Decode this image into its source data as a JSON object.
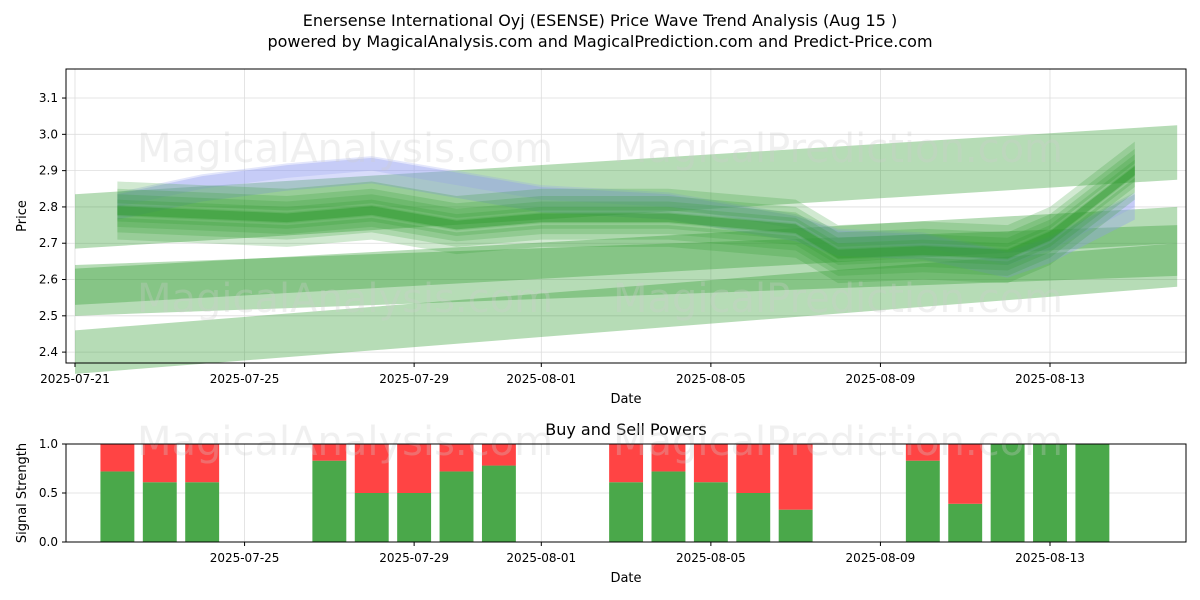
{
  "title_line1": "Enersense International Oyj (ESENSE) Price Wave Trend Analysis (Aug 15 )",
  "title_line2": "powered by MagicalAnalysis.com and MagicalPrediction.com and Predict-Price.com",
  "watermarks": [
    "MagicalAnalysis.com",
    "MagicalPrediction.com"
  ],
  "colors": {
    "green": "#2e9a2e",
    "red": "#ff4444",
    "bar_green": "#4aa84a",
    "blue": "#8e9cf0"
  },
  "chart_data": [
    {
      "type": "area",
      "title": "",
      "xlabel": "Date",
      "ylabel": "Price",
      "ylim": [
        2.37,
        3.18
      ],
      "xlim": [
        "2025-07-21",
        "2025-08-17"
      ],
      "yticks": [
        "2.4",
        "2.5",
        "2.6",
        "2.7",
        "2.8",
        "2.9",
        "3.0",
        "3.1"
      ],
      "xticks": [
        "2025-07-21",
        "2025-07-25",
        "2025-07-29",
        "2025-08-01",
        "2025-08-05",
        "2025-08-09",
        "2025-08-13"
      ],
      "grid": true,
      "bands": [
        {
          "name": "",
          "color": "green",
          "x0": "2025-07-21",
          "x1": "2025-08-16",
          "center": [
            2.76,
            2.95
          ],
          "half_width": 0.075
        },
        {
          "name": "",
          "color": "green",
          "x0": "2025-07-21",
          "x1": "2025-08-16",
          "center": [
            2.57,
            2.68
          ],
          "half_width": 0.07
        },
        {
          "name": "",
          "color": "green",
          "x0": "2025-07-21",
          "x1": "2025-08-16",
          "center": [
            2.4,
            2.64
          ],
          "half_width": 0.06
        },
        {
          "name": "",
          "color": "green",
          "x0": "2025-07-21",
          "x1": "2025-08-16",
          "center": [
            2.58,
            2.75
          ],
          "half_width": 0.05
        }
      ],
      "wave_dates": [
        "2025-07-22",
        "2025-07-24",
        "2025-07-26",
        "2025-07-28",
        "2025-07-30",
        "2025-08-01",
        "2025-08-04",
        "2025-08-07",
        "2025-08-08",
        "2025-08-10",
        "2025-08-12",
        "2025-08-13",
        "2025-08-15"
      ],
      "wave_center": [
        2.79,
        2.78,
        2.77,
        2.79,
        2.75,
        2.77,
        2.77,
        2.74,
        2.67,
        2.68,
        2.67,
        2.72,
        2.9
      ],
      "blue_wave": [
        2.8,
        2.85,
        2.88,
        2.9,
        2.86,
        2.82,
        2.8,
        2.74,
        2.7,
        2.69,
        2.64,
        2.68,
        2.8
      ]
    },
    {
      "type": "bar",
      "title": "Buy and Sell Powers",
      "xlabel": "Date",
      "ylabel": "Signal Strength",
      "ylim": [
        0,
        1
      ],
      "yticks": [
        "0.0",
        "0.5",
        "1.0"
      ],
      "xticks": [
        "2025-07-25",
        "2025-07-29",
        "2025-08-01",
        "2025-08-05",
        "2025-08-09",
        "2025-08-13"
      ],
      "categories": [
        "2025-07-22",
        "2025-07-23",
        "2025-07-24",
        "2025-07-27",
        "2025-07-28",
        "2025-07-29",
        "2025-07-30",
        "2025-07-31",
        "2025-08-03",
        "2025-08-04",
        "2025-08-05",
        "2025-08-06",
        "2025-08-07",
        "2025-08-10",
        "2025-08-11",
        "2025-08-12",
        "2025-08-13",
        "2025-08-14"
      ],
      "series": [
        {
          "name": "",
          "color": "bar_green",
          "values": [
            0.72,
            0.61,
            0.61,
            0.83,
            0.5,
            0.5,
            0.72,
            0.78,
            0.61,
            0.72,
            0.61,
            0.5,
            0.33,
            0.83,
            0.39,
            1.0,
            1.0,
            1.0
          ]
        },
        {
          "name": "",
          "color": "red",
          "values": [
            0.28,
            0.39,
            0.39,
            0.17,
            0.5,
            0.5,
            0.28,
            0.22,
            0.39,
            0.28,
            0.39,
            0.5,
            0.67,
            0.17,
            0.61,
            0.0,
            0.0,
            0.0
          ]
        }
      ]
    }
  ]
}
